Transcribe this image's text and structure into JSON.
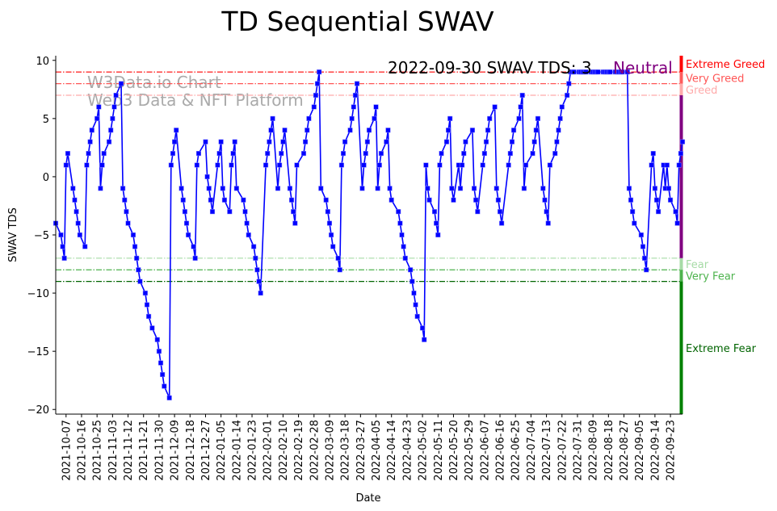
{
  "chart_data": {
    "type": "line",
    "title": "TD Sequential SWAV",
    "xlabel": "Date",
    "ylabel": "SWAV TDS",
    "xlim": [
      "2021-10-01",
      "2022-09-30"
    ],
    "ylim": [
      -20.4,
      10.4
    ],
    "grid": false,
    "yticks": [
      10,
      5,
      0,
      -5,
      -10,
      -15,
      -20
    ],
    "xticks": [
      "2021-10-07",
      "2021-10-16",
      "2021-10-25",
      "2021-11-03",
      "2021-11-12",
      "2021-11-21",
      "2021-11-30",
      "2021-12-09",
      "2021-12-18",
      "2021-12-27",
      "2022-01-05",
      "2022-01-14",
      "2022-01-23",
      "2022-02-01",
      "2022-02-10",
      "2022-02-19",
      "2022-02-28",
      "2022-03-09",
      "2022-03-18",
      "2022-03-27",
      "2022-04-05",
      "2022-04-14",
      "2022-04-23",
      "2022-05-02",
      "2022-05-11",
      "2022-05-20",
      "2022-05-29",
      "2022-06-07",
      "2022-06-16",
      "2022-06-25",
      "2022-07-04",
      "2022-07-13",
      "2022-07-22",
      "2022-07-31",
      "2022-08-09",
      "2022-08-18",
      "2022-08-27",
      "2022-09-05",
      "2022-09-14",
      "2022-09-23"
    ],
    "series": [
      {
        "name": "SWAV TDS",
        "color": "#0000ff",
        "weeks": [
          {
            "start": "2021-09-27",
            "values": [
              null,
              null,
              null,
              null,
              -4
            ]
          },
          {
            "start": "2021-10-04",
            "values": [
              -5,
              -6,
              -7,
              1,
              2
            ]
          },
          {
            "start": "2021-10-11",
            "values": [
              -1,
              -2,
              -3,
              -4,
              -5
            ]
          },
          {
            "start": "2021-10-18",
            "values": [
              -6,
              1,
              2,
              3,
              4
            ]
          },
          {
            "start": "2021-10-25",
            "values": [
              5,
              6,
              -1,
              1,
              2
            ]
          },
          {
            "start": "2021-11-01",
            "values": [
              3,
              4,
              5,
              6,
              7
            ]
          },
          {
            "start": "2021-11-08",
            "values": [
              8,
              -1,
              -2,
              -3,
              -4
            ]
          },
          {
            "start": "2021-11-15",
            "values": [
              -5,
              -6,
              -7,
              -8,
              -9
            ]
          },
          {
            "start": "2021-11-22",
            "values": [
              -10,
              -11,
              -12,
              null,
              -13
            ]
          },
          {
            "start": "2021-11-29",
            "values": [
              -14,
              -15,
              -16,
              -17,
              -18
            ]
          },
          {
            "start": "2021-12-06",
            "values": [
              -19,
              1,
              2,
              3,
              4
            ]
          },
          {
            "start": "2021-12-13",
            "values": [
              -1,
              -2,
              -3,
              -4,
              -5
            ]
          },
          {
            "start": "2021-12-20",
            "values": [
              -6,
              -7,
              1,
              2,
              null
            ]
          },
          {
            "start": "2021-12-27",
            "values": [
              3,
              0,
              -1,
              -2,
              -3
            ]
          },
          {
            "start": "2022-01-03",
            "values": [
              1,
              2,
              3,
              -1,
              -2
            ]
          },
          {
            "start": "2022-01-10",
            "values": [
              -3,
              1,
              2,
              3,
              -1
            ]
          },
          {
            "start": "2022-01-17",
            "values": [
              null,
              -2,
              -3,
              -4,
              -5
            ]
          },
          {
            "start": "2022-01-24",
            "values": [
              -6,
              -7,
              -8,
              -9,
              -10
            ]
          },
          {
            "start": "2022-01-31",
            "values": [
              1,
              2,
              3,
              4,
              5
            ]
          },
          {
            "start": "2022-02-07",
            "values": [
              -1,
              1,
              2,
              3,
              4
            ]
          },
          {
            "start": "2022-02-14",
            "values": [
              -1,
              -2,
              -3,
              -4,
              1
            ]
          },
          {
            "start": "2022-02-21",
            "values": [
              null,
              2,
              3,
              4,
              5
            ]
          },
          {
            "start": "2022-02-28",
            "values": [
              6,
              7,
              8,
              9,
              -1
            ]
          },
          {
            "start": "2022-03-07",
            "values": [
              -2,
              -3,
              -4,
              -5,
              -6
            ]
          },
          {
            "start": "2022-03-14",
            "values": [
              -7,
              -8,
              1,
              2,
              3
            ]
          },
          {
            "start": "2022-03-21",
            "values": [
              4,
              5,
              6,
              7,
              8
            ]
          },
          {
            "start": "2022-03-28",
            "values": [
              -1,
              1,
              2,
              3,
              4
            ]
          },
          {
            "start": "2022-04-04",
            "values": [
              5,
              6,
              -1,
              1,
              2
            ]
          },
          {
            "start": "2022-04-11",
            "values": [
              3,
              4,
              -1,
              -2,
              null
            ]
          },
          {
            "start": "2022-04-18",
            "values": [
              -3,
              -4,
              -5,
              -6,
              -7
            ]
          },
          {
            "start": "2022-04-25",
            "values": [
              -8,
              -9,
              -10,
              -11,
              -12
            ]
          },
          {
            "start": "2022-05-02",
            "values": [
              -13,
              -14,
              1,
              -1,
              -2
            ]
          },
          {
            "start": "2022-05-09",
            "values": [
              -3,
              -4,
              -5,
              1,
              2
            ]
          },
          {
            "start": "2022-05-16",
            "values": [
              3,
              4,
              5,
              -1,
              -2
            ]
          },
          {
            "start": "2022-05-23",
            "values": [
              1,
              -1,
              1,
              2,
              3
            ]
          },
          {
            "start": "2022-05-30",
            "values": [
              null,
              4,
              -1,
              -2,
              -3
            ]
          },
          {
            "start": "2022-06-06",
            "values": [
              1,
              2,
              3,
              4,
              5
            ]
          },
          {
            "start": "2022-06-13",
            "values": [
              6,
              -1,
              -2,
              -3,
              -4
            ]
          },
          {
            "start": "2022-06-20",
            "values": [
              null,
              1,
              2,
              3,
              4
            ]
          },
          {
            "start": "2022-06-27",
            "values": [
              5,
              6,
              7,
              -1,
              1
            ]
          },
          {
            "start": "2022-07-04",
            "values": [
              null,
              2,
              3,
              4,
              5
            ]
          },
          {
            "start": "2022-07-11",
            "values": [
              -1,
              -2,
              -3,
              -4,
              1
            ]
          },
          {
            "start": "2022-07-18",
            "values": [
              2,
              3,
              4,
              5,
              6
            ]
          },
          {
            "start": "2022-07-25",
            "values": [
              7,
              8,
              9,
              9,
              9
            ]
          },
          {
            "start": "2022-08-01",
            "values": [
              9,
              9,
              9,
              9,
              9
            ]
          },
          {
            "start": "2022-08-08",
            "values": [
              9,
              9,
              9,
              9,
              9
            ]
          },
          {
            "start": "2022-08-15",
            "values": [
              9,
              9,
              9,
              9,
              9
            ]
          },
          {
            "start": "2022-08-22",
            "values": [
              9,
              9,
              9,
              9,
              9
            ]
          },
          {
            "start": "2022-08-29",
            "values": [
              9,
              -1,
              -2,
              -3,
              -4
            ]
          },
          {
            "start": "2022-09-05",
            "values": [
              null,
              -5,
              -6,
              -7,
              -8
            ]
          },
          {
            "start": "2022-09-12",
            "values": [
              1,
              2,
              -1,
              -2,
              -3
            ]
          },
          {
            "start": "2022-09-19",
            "values": [
              1,
              -1,
              1,
              -1,
              -2
            ]
          },
          {
            "start": "2022-09-26",
            "values": [
              -3,
              -4,
              1,
              2,
              3
            ]
          }
        ]
      }
    ],
    "reference_lines": [
      {
        "value": 9,
        "label": "Extreme Greed",
        "color": "#ff0000",
        "band_color": "#ff0000"
      },
      {
        "value": 8,
        "label": "Very Greed",
        "color": "#ff5555",
        "band_color": "#ff5c5c"
      },
      {
        "value": 7,
        "label": "Greed",
        "color": "#ffaaaa",
        "band_color": "#ffaaaa"
      },
      {
        "value": -7,
        "label": "Fear",
        "color": "#a6dba6",
        "band_color": "#a6dba6"
      },
      {
        "value": -8,
        "label": "Very Fear",
        "color": "#4db34d",
        "band_color": "#4db34d"
      },
      {
        "value": -9,
        "label": "Extreme Fear",
        "color": "#006400",
        "band_color": "#008000"
      }
    ],
    "neutral_color": "#800080",
    "annotation": {
      "text": "2022-09-30 SWAV TDS: 3",
      "status": "Neutral",
      "status_color": "#800080"
    },
    "watermark": [
      "W3Data.io Chart",
      "Web3 Data & NFT Platform"
    ]
  }
}
